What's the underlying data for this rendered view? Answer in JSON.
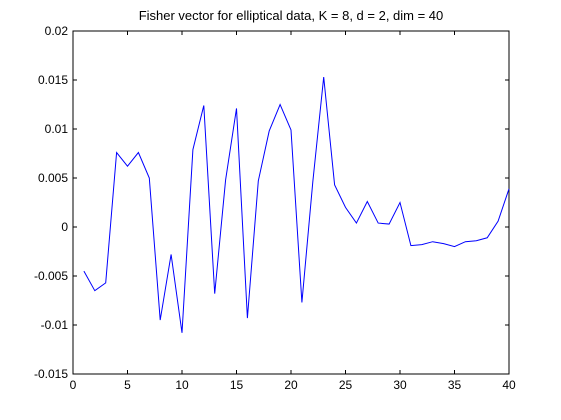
{
  "chart_data": {
    "type": "line",
    "title": "Fisher vector for elliptical data, K = 8, d = 2, dim = 40",
    "xlabel": "",
    "ylabel": "",
    "xlim": [
      0,
      40
    ],
    "ylim": [
      -0.015,
      0.02
    ],
    "x_ticks": [
      0,
      5,
      10,
      15,
      20,
      25,
      30,
      35,
      40
    ],
    "x_tick_labels": [
      "0",
      "5",
      "10",
      "15",
      "20",
      "25",
      "30",
      "35",
      "40"
    ],
    "y_ticks": [
      -0.015,
      -0.01,
      -0.005,
      0,
      0.005,
      0.01,
      0.015,
      0.02
    ],
    "y_tick_labels": [
      "-0.015",
      "-0.01",
      "-0.005",
      "0",
      "0.005",
      "0.01",
      "0.015",
      "0.02"
    ],
    "grid": false,
    "legend": "none",
    "series": [
      {
        "color": "#0000ff",
        "x": [
          1,
          2,
          3,
          4,
          5,
          6,
          7,
          8,
          9,
          10,
          11,
          12,
          13,
          14,
          15,
          16,
          17,
          18,
          19,
          20,
          21,
          22,
          23,
          24,
          25,
          26,
          27,
          28,
          29,
          30,
          31,
          32,
          33,
          34,
          35,
          36,
          37,
          38,
          39,
          40
        ],
        "values": [
          -0.0045,
          -0.0065,
          -0.0057,
          0.0076,
          0.0062,
          0.0076,
          0.005,
          -0.0095,
          -0.0028,
          -0.0108,
          0.0079,
          0.0124,
          -0.0068,
          0.0048,
          0.0121,
          -0.0093,
          0.0047,
          0.0098,
          0.0125,
          0.0099,
          -0.0077,
          0.0046,
          0.0153,
          0.0043,
          0.002,
          0.0004,
          0.0026,
          0.0004,
          0.0003,
          0.0025,
          -0.0019,
          -0.0018,
          -0.0015,
          -0.0017,
          -0.002,
          -0.0015,
          -0.0014,
          -0.0011,
          0.0006,
          0.0039
        ]
      }
    ]
  }
}
